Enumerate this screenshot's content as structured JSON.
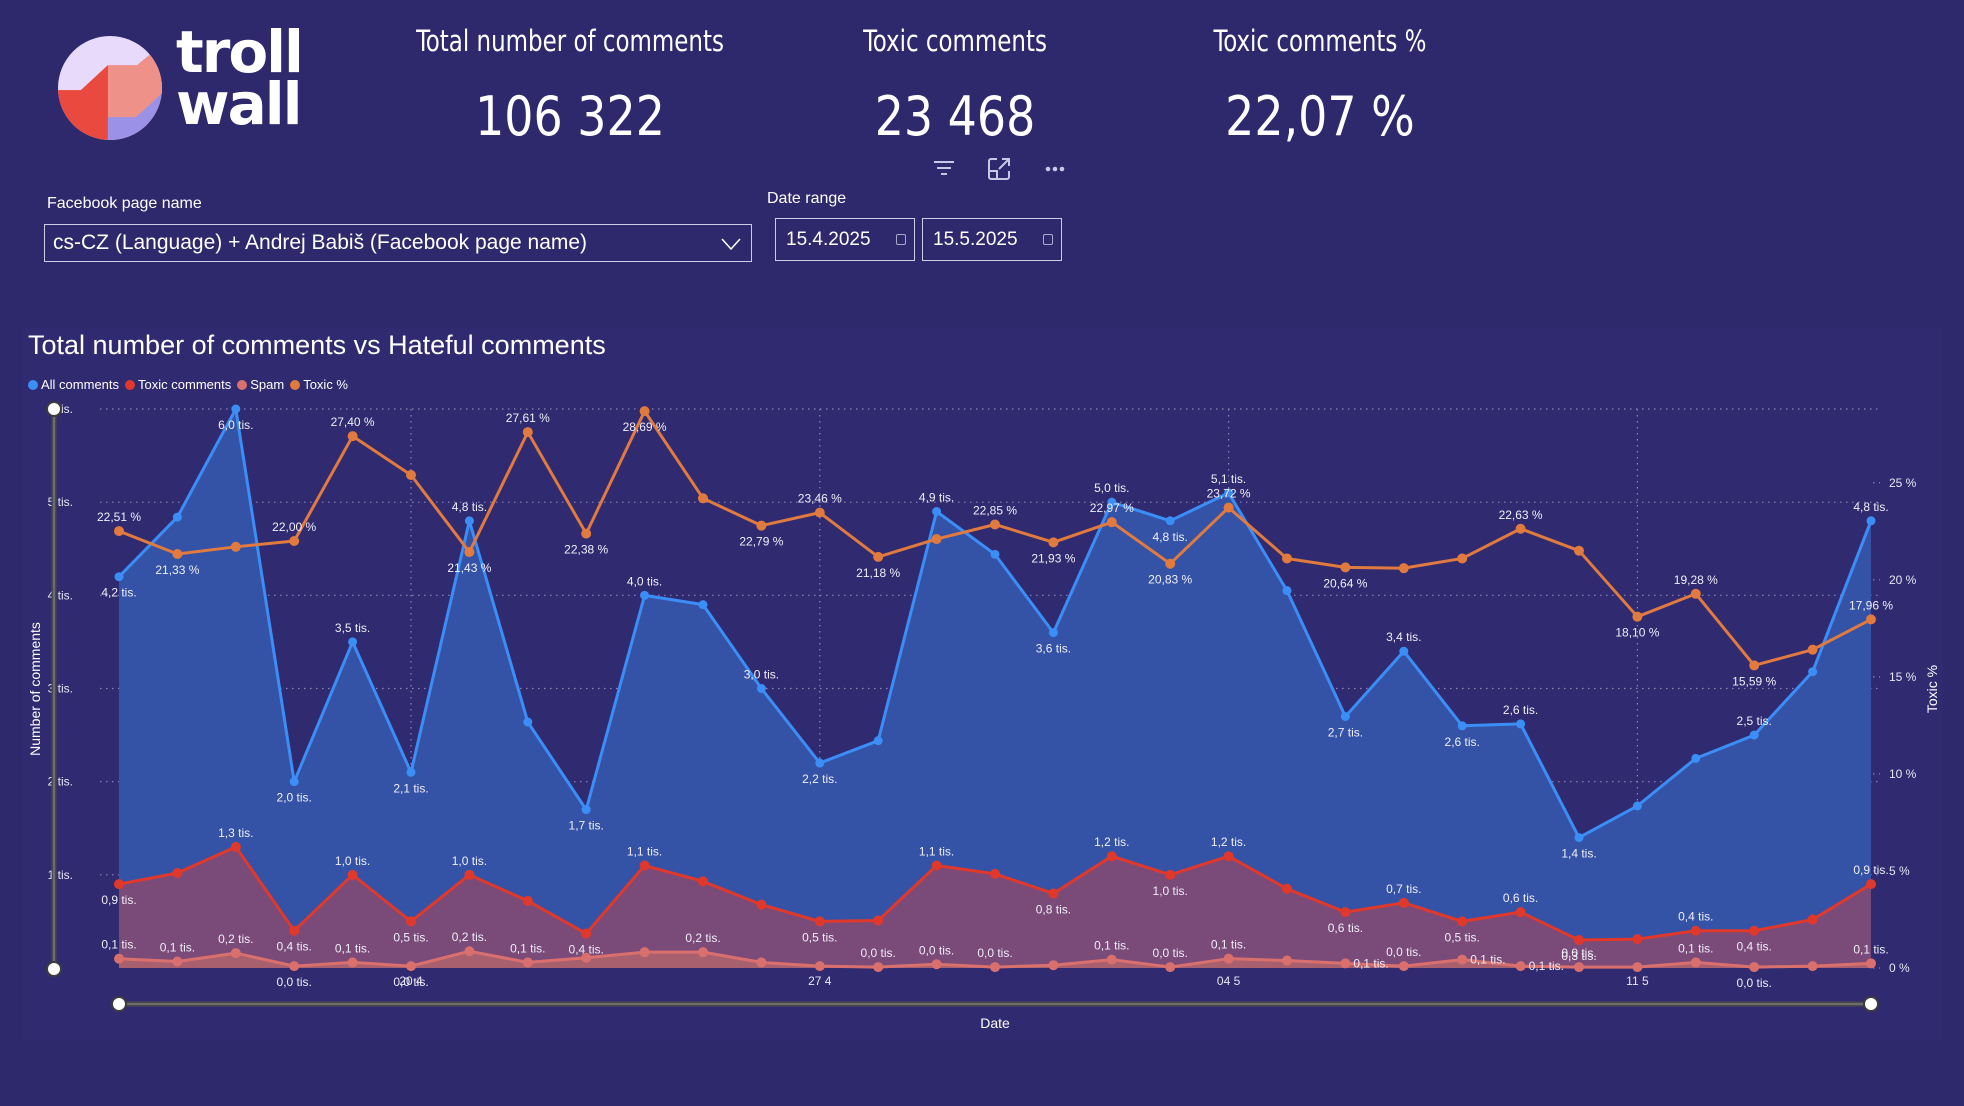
{
  "brand": {
    "name_line1": "troll",
    "name_line2": "wall"
  },
  "kpis": [
    {
      "title": "Total number of comments",
      "value": "106 322"
    },
    {
      "title": "Toxic comments",
      "value": "23 468"
    },
    {
      "title": "Toxic comments %",
      "value": "22,07 %"
    }
  ],
  "visual_header": {
    "icons": [
      "filter-icon",
      "focus-mode-icon",
      "more-options-icon"
    ]
  },
  "filters": {
    "facebook_page": {
      "label": "Facebook page name",
      "value": "cs-CZ (Language) + Andrej Babiš (Facebook page name)"
    },
    "date_range": {
      "label": "Date range",
      "from": "15.4.2025",
      "to": "15.5.2025"
    }
  },
  "colors": {
    "background": "#2e286c",
    "all_comments": "#3a8ef6",
    "toxic_comments": "#e0392b",
    "spam": "#d9706e",
    "toxic_pct": "#e07a3f"
  },
  "chart_data": {
    "type": "line",
    "title": "Total number of comments vs Hateful comments",
    "xlabel": "Date",
    "ylabel": "Number of comments",
    "y2label": "Toxic %",
    "legend_position": "top-left",
    "grid": true,
    "ylim": [
      0,
      6000
    ],
    "y2lim": [
      0,
      28.8
    ],
    "yticks": [
      "6 tis.",
      "5 tis.",
      "4 tis.",
      "3 tis.",
      "2 tis.",
      "1 tis."
    ],
    "ytick_values": [
      6000,
      5000,
      4000,
      3000,
      2000,
      1000
    ],
    "y2ticks": [
      "25 %",
      "20 %",
      "15 %",
      "10 %",
      "5 %",
      "0 %"
    ],
    "y2tick_values": [
      25,
      20,
      15,
      10,
      5,
      0
    ],
    "xticks": [
      {
        "index": 5,
        "label": "20 4"
      },
      {
        "index": 12,
        "label": "27 4"
      },
      {
        "index": 19,
        "label": "04 5"
      },
      {
        "index": 26,
        "label": "11 5"
      }
    ],
    "x": [
      "15.4",
      "16.4",
      "17.4",
      "18.4",
      "19.4",
      "20.4",
      "21.4",
      "22.4",
      "23.4",
      "24.4",
      "25.4",
      "26.4",
      "27.4",
      "28.4",
      "29.4",
      "30.4",
      "1.5",
      "2.5",
      "3.5",
      "4.5",
      "5.5",
      "6.5",
      "7.5",
      "8.5",
      "9.5",
      "10.5",
      "11.5",
      "12.5",
      "13.5",
      "14.5",
      "15.5"
    ],
    "series": [
      {
        "name": "All comments",
        "axis": "left",
        "area": true,
        "values": [
          4200,
          4840,
          6000,
          2000,
          3500,
          2100,
          4800,
          2640,
          1700,
          4000,
          3900,
          3000,
          2200,
          2440,
          4900,
          4440,
          3600,
          5000,
          4800,
          5100,
          4050,
          2700,
          3400,
          2600,
          2620,
          1400,
          1740,
          2250,
          2500,
          3180,
          4800
        ],
        "labels": [
          "4,2 tis.",
          null,
          "6,0 tis.",
          "2,0 tis.",
          "3,5 tis.",
          "2,1 tis.",
          "4,8 tis.",
          null,
          "1,7 tis.",
          "4,0 tis.",
          null,
          "3,0 tis.",
          "2,2 tis.",
          null,
          "4,9 tis.",
          null,
          "3,6 tis.",
          "5,0 tis.",
          "4,8 tis.",
          "5,1 tis.",
          null,
          "2,7 tis.",
          "3,4 tis.",
          "2,6 tis.",
          "2,6 tis.",
          "1,4 tis.",
          null,
          null,
          "2,5 tis.",
          null,
          "4,8 tis."
        ],
        "label_pos": [
          "below",
          null,
          "below",
          "below",
          "above",
          "below",
          "above",
          null,
          "below",
          "above",
          null,
          "above",
          "below",
          null,
          "above",
          null,
          "below",
          "above",
          "below",
          "above",
          null,
          "below",
          "above",
          "below",
          "above",
          "below",
          null,
          null,
          "above",
          null,
          "above"
        ]
      },
      {
        "name": "Toxic comments",
        "axis": "left",
        "area": true,
        "values": [
          900,
          1020,
          1300,
          400,
          1000,
          500,
          1000,
          720,
          370,
          1100,
          930,
          680,
          500,
          510,
          1100,
          1010,
          800,
          1200,
          1000,
          1200,
          850,
          600,
          700,
          500,
          600,
          300,
          310,
          400,
          400,
          520,
          900
        ],
        "labels": [
          "0,9 tis.",
          null,
          "1,3 tis.",
          "0,4 tis.",
          "1,0 tis.",
          "0,5 tis.",
          "1,0 tis.",
          null,
          "0,4 tis.",
          "1,1 tis.",
          null,
          null,
          "0,5 tis.",
          null,
          "1,1 tis.",
          null,
          "0,8 tis.",
          "1,2 tis.",
          "1,0 tis.",
          "1,2 tis.",
          null,
          "0,6 tis.",
          "0,7 tis.",
          "0,5 tis.",
          "0,6 tis.",
          "0,3 tis.",
          null,
          "0,4 tis.",
          "0,4 tis.",
          null,
          "0,9 tis."
        ],
        "label_pos": [
          "below",
          null,
          "above",
          "below",
          "above",
          "below",
          "above",
          null,
          "below",
          "above",
          null,
          null,
          "below",
          null,
          "above",
          null,
          "below",
          "above",
          "below",
          "above",
          null,
          "below",
          "above",
          "below",
          "above",
          "below",
          null,
          "above",
          "below",
          null,
          "above"
        ]
      },
      {
        "name": "Spam",
        "axis": "left",
        "area": true,
        "values": [
          100,
          70,
          160,
          20,
          60,
          20,
          180,
          60,
          110,
          170,
          170,
          60,
          20,
          10,
          40,
          10,
          30,
          90,
          10,
          100,
          80,
          50,
          20,
          90,
          20,
          10,
          10,
          60,
          10,
          20,
          50
        ],
        "labels": [
          "0,1 tis.",
          "0,1 tis.",
          "0,2 tis.",
          "0,0 tis.",
          "0,1 tis.",
          "0,0 tis.",
          "0,2 tis.",
          "0,1 tis.",
          null,
          null,
          "0,2 tis.",
          null,
          null,
          "0,0 tis.",
          "0,0 tis.",
          "0,0 tis.",
          null,
          "0,1 tis.",
          "0,0 tis.",
          "0,1 tis.",
          null,
          "0,1 tis.",
          "0,0 tis.",
          "0,1 tis.",
          "0,1 tis.",
          "0,0 tis.",
          null,
          "0,1 tis.",
          "0,0 tis.",
          null,
          "0,1 tis."
        ],
        "label_pos": [
          "above",
          "above",
          "above",
          "below",
          "above",
          "below",
          "above",
          "above",
          null,
          null,
          "above",
          null,
          null,
          "above",
          "above",
          "above",
          null,
          "above",
          "above",
          "above",
          null,
          "right",
          "above",
          "right",
          "right",
          "above",
          null,
          "above",
          "below",
          null,
          "above"
        ]
      },
      {
        "name": "Toxic %",
        "axis": "right",
        "area": false,
        "values": [
          22.51,
          21.33,
          21.7,
          22.0,
          27.4,
          25.4,
          21.43,
          27.61,
          22.38,
          28.69,
          24.2,
          22.79,
          23.46,
          21.18,
          22.1,
          22.85,
          21.93,
          22.97,
          20.83,
          23.72,
          21.1,
          20.64,
          20.6,
          21.1,
          22.63,
          21.5,
          18.1,
          19.28,
          15.59,
          16.4,
          17.96
        ],
        "labels": [
          "22,51 %",
          "21,33 %",
          null,
          "22,00 %",
          "27,40 %",
          null,
          "21,43 %",
          "27,61 %",
          "22,38 %",
          "28,69 %",
          null,
          "22,79 %",
          "23,46 %",
          "21,18 %",
          null,
          "22,85 %",
          "21,93 %",
          "22,97 %",
          "20,83 %",
          "23,72 %",
          null,
          "20,64 %",
          null,
          null,
          "22,63 %",
          null,
          "18,10 %",
          "19,28 %",
          "15,59 %",
          null,
          "17,96 %"
        ],
        "label_pos": [
          "above",
          "below",
          null,
          "above",
          "above",
          null,
          "below",
          "above",
          "below",
          "below",
          null,
          "below",
          "above",
          "below",
          null,
          "above",
          "below",
          "above",
          "below",
          "above",
          null,
          "below",
          null,
          null,
          "above",
          null,
          "below",
          "above",
          "below",
          null,
          "above"
        ]
      }
    ]
  }
}
